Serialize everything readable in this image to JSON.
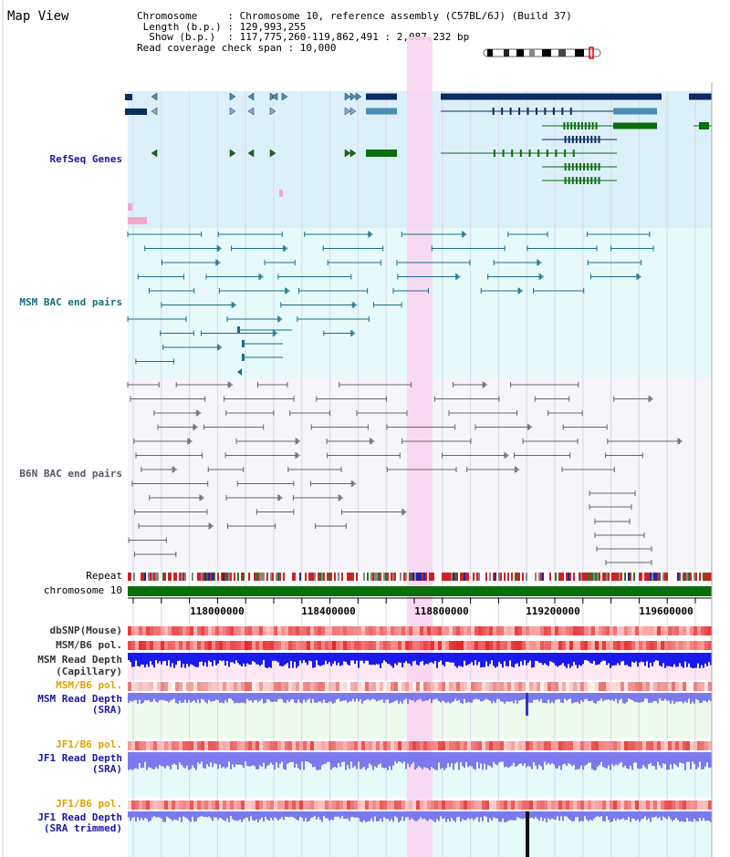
{
  "header": {
    "title": "Map View",
    "info_lines": [
      "Chromosome     : Chromosome 10, reference assembly (C57BL/6J) (Build 37)",
      " Length (b.p.) : 129,993,255",
      "  Show (b.p.)  : 117,775,260-119,862,491 : 2,087,232 bp",
      "Read coverage check span : 10,000"
    ]
  },
  "tracks": {
    "refseq": "RefSeq Genes",
    "msm_bac": "MSM BAC end pairs",
    "b6n_bac": "B6N BAC end pairs",
    "repeat": "Repeat",
    "chromosome": "chromosome 10",
    "dbsnp": "dbSNP(Mouse)",
    "msm_b6_pol_1": "MSM/B6 pol.",
    "msm_depth_cap_1": "MSM Read Depth",
    "msm_depth_cap_2": "(Capillary)",
    "msm_b6_pol_2": "MSM/B6 pol.",
    "msm_depth_sra_1": "MSM Read Depth",
    "msm_depth_sra_2": "(SRA)",
    "jf1_b6_pol_1": "JF1/B6 pol.",
    "jf1_depth_sra_1": "JF1 Read Depth",
    "jf1_depth_sra_2": "(SRA)",
    "jf1_b6_pol_2": "JF1/B6 pol.",
    "jf1_depth_trim_1": "JF1 Read Depth",
    "jf1_depth_trim_2": "(SRA trimmed)"
  },
  "axis": {
    "ticks": [
      "118000000",
      "118400000",
      "118800000",
      "119200000",
      "119600000"
    ]
  },
  "colors": {
    "refseq_bg": "#dcf0fa",
    "msm_bg": "#e6fafa",
    "b6n_bg": "#f5f5fa",
    "highlight": "#f8d4f0",
    "refseq_dark": "#0a2c5e",
    "refseq_mid": "#4a8eb4",
    "refseq_green": "#0a6e0a",
    "msm_pair": "#1a6e8a",
    "b6n_pair": "#666666",
    "chrom_bar": "#0a6e0a",
    "depth_blue": "#1a1aee",
    "depth_light": "#7a7aee"
  }
}
